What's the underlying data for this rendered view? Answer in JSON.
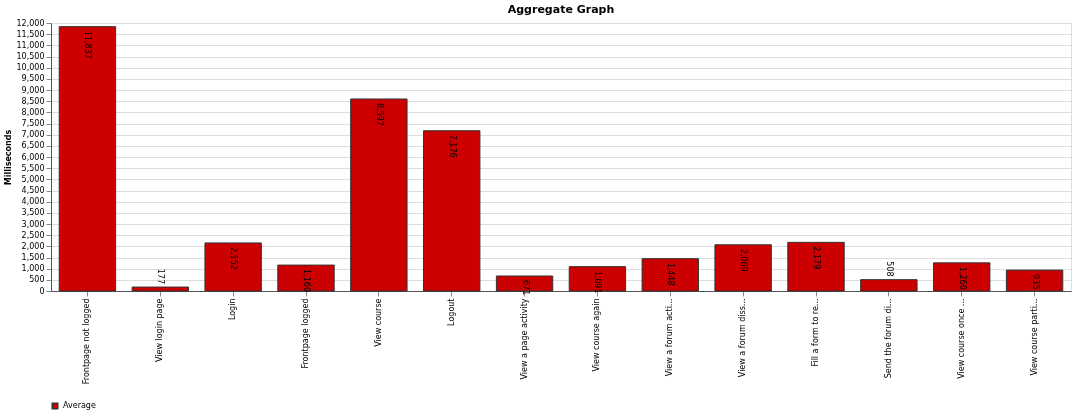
{
  "chart_data": {
    "type": "bar",
    "title": "Aggregate Graph",
    "ylabel": "Milliseconds",
    "categories": [
      "Frontpage not logged",
      "View login page",
      "Login",
      "Frontpage logged",
      "View course",
      "Logout",
      "View a page activity",
      "View course again",
      "View a forum acti...",
      "View a forum diss...",
      "Fill a form to re...",
      "Send the forum di...",
      "View course once ...",
      "View course parti..."
    ],
    "series": [
      {
        "name": "Average",
        "color": "#cc0000",
        "values": [
          11837,
          177,
          2152,
          1160,
          8597,
          7176,
          671,
          1091,
          1448,
          2069,
          2179,
          508,
          1260,
          935
        ]
      }
    ],
    "ylim": [
      0,
      12000
    ],
    "yticks": [
      {
        "value": 0,
        "label": "0"
      },
      {
        "value": 500,
        "label": "500"
      },
      {
        "value": 1000,
        "label": "1,000"
      },
      {
        "value": 1500,
        "label": "1,500"
      },
      {
        "value": 2000,
        "label": "2,000"
      },
      {
        "value": 2500,
        "label": "2,500"
      },
      {
        "value": 3000,
        "label": "3,000"
      },
      {
        "value": 3500,
        "label": "3,500"
      },
      {
        "value": 4000,
        "label": "4,000"
      },
      {
        "value": 4500,
        "label": "4,500"
      },
      {
        "value": 5000,
        "label": "5,000"
      },
      {
        "value": 5500,
        "label": "5,500"
      },
      {
        "value": 6000,
        "label": "6,000"
      },
      {
        "value": 6500,
        "label": "6,500"
      },
      {
        "value": 7000,
        "label": "7,000"
      },
      {
        "value": 7500,
        "label": "7,500"
      },
      {
        "value": 8000,
        "label": "8,000"
      },
      {
        "value": 8500,
        "label": "8,500"
      },
      {
        "value": 9000,
        "label": "9,000"
      },
      {
        "value": 9500,
        "label": "9,500"
      },
      {
        "value": 10000,
        "label": "10,000"
      },
      {
        "value": 10500,
        "label": "10,500"
      },
      {
        "value": 11000,
        "label": "11,000"
      },
      {
        "value": 11500,
        "label": "11,500"
      },
      {
        "value": 12000,
        "label": "12,000"
      }
    ],
    "value_labels": [
      "11,837",
      "177",
      "2,152",
      "1,160",
      "8,597",
      "7,176",
      "671",
      "1,091",
      "1,448",
      "2,069",
      "2,179",
      "508",
      "1,260",
      "935"
    ],
    "grid": "y",
    "legend": "bottom"
  }
}
